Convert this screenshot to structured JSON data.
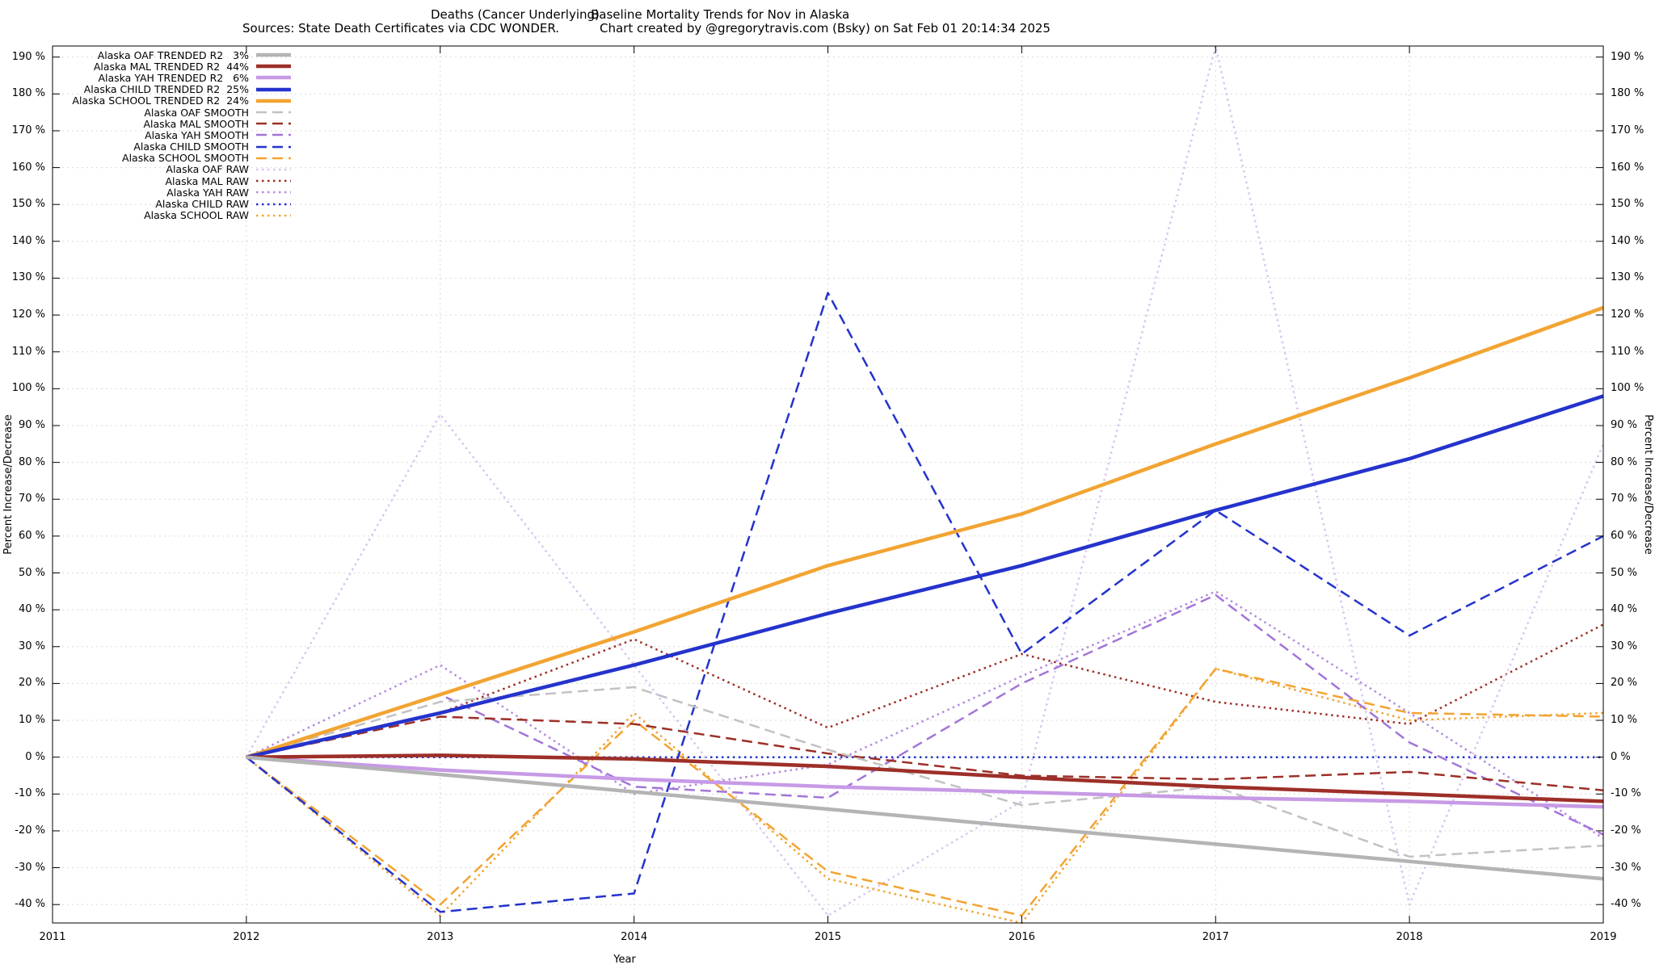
{
  "header": {
    "title_left": "Deaths (Cancer Underlying)",
    "title_right": "Baseline Mortality Trends for Nov in Alaska",
    "subtitle_left": "Sources: State Death Certificates via CDC WONDER.",
    "subtitle_right": "Chart created by @gregorytravis.com (Bsky) on Sat Feb 01 20:14:34 2025"
  },
  "axes": {
    "x_label": "Year",
    "y_left_label": "Percent Increase/Decrease",
    "y_right_label": "Percent Increase/Decrease"
  },
  "colors": {
    "background": "#ffffff",
    "grid": "#d9d9d9",
    "axis": "#000000",
    "gray": "#b4b4b4",
    "dark_red": "#9d2f28",
    "light_purple": "#c79ae6",
    "blue": "#2433cc",
    "orange": "#f2a432",
    "pale_violet": "#d8c4f0"
  },
  "chart_data": {
    "type": "line",
    "title": "Deaths (Cancer Underlying)  Baseline Mortality Trends for Nov in Alaska",
    "xlabel": "Year",
    "ylabel": "Percent Increase/Decrease",
    "grid": true,
    "legend_position": "top-left",
    "x_range": [
      2011,
      2019
    ],
    "y_range": [
      -45,
      193
    ],
    "x_ticks": [
      2011,
      2012,
      2013,
      2014,
      2015,
      2016,
      2017,
      2018,
      2019
    ],
    "y_tick_min": -40,
    "y_tick_max": 190,
    "y_tick_step": 10,
    "y_tick_suffix": " %",
    "x": [
      2012,
      2013,
      2014,
      2015,
      2016,
      2017,
      2018,
      2019
    ],
    "series": [
      {
        "name": "alaska-oaf-trended",
        "legend_label": "Alaska OAF TRENDED R2   3%",
        "style": "solid",
        "width": 4.5,
        "color": "#b4b4b4",
        "values": [
          0,
          -4.7,
          -9.4,
          -14.1,
          -18.9,
          -23.6,
          -28.3,
          -33
        ]
      },
      {
        "name": "alaska-mal-trended",
        "legend_label": "Alaska MAL TRENDED R2  44%",
        "style": "solid",
        "width": 4.5,
        "color": "#9d2f28",
        "values": [
          0,
          0.5,
          -0.5,
          -2.5,
          -5.5,
          -8,
          -10,
          -12
        ]
      },
      {
        "name": "alaska-yah-trended",
        "legend_label": "Alaska YAH TRENDED R2   6%",
        "style": "solid",
        "width": 4.5,
        "color": "#c79ae6",
        "values": [
          0,
          -3.5,
          -6,
          -8,
          -9.5,
          -11,
          -12,
          -13.5
        ]
      },
      {
        "name": "alaska-child-trended",
        "legend_label": "Alaska CHILD TRENDED R2  25%",
        "style": "solid",
        "width": 4.5,
        "color": "#2433cc",
        "values": [
          0,
          12,
          25,
          39,
          52,
          67,
          81,
          98
        ]
      },
      {
        "name": "alaska-school-trended",
        "legend_label": "Alaska SCHOOL TRENDED R2  24%",
        "style": "solid",
        "width": 4.5,
        "color": "#f2a432",
        "values": [
          0,
          17,
          34,
          52,
          66,
          85,
          103,
          122
        ]
      },
      {
        "name": "alaska-oaf-smooth",
        "legend_label": "Alaska OAF SMOOTH",
        "style": "dashed",
        "width": 2.5,
        "color": "#c2c2c2",
        "values": [
          0,
          15,
          19,
          2,
          -13,
          -8,
          -27,
          -24
        ]
      },
      {
        "name": "alaska-mal-smooth",
        "legend_label": "Alaska MAL SMOOTH",
        "style": "dashed",
        "width": 2.5,
        "color": "#9d2f28",
        "values": [
          0,
          11,
          9,
          1,
          -5,
          -6,
          -4,
          -9
        ]
      },
      {
        "name": "alaska-yah-smooth",
        "legend_label": "Alaska YAH SMOOTH",
        "style": "dashed",
        "width": 2.5,
        "color": "#a275d8",
        "values": [
          0,
          17,
          -8,
          -11,
          20,
          44,
          4,
          -21
        ]
      },
      {
        "name": "alaska-child-smooth",
        "legend_label": "Alaska CHILD SMOOTH",
        "style": "dashed",
        "width": 2.5,
        "color": "#2433cc",
        "values": [
          0,
          -42,
          -37,
          126,
          28,
          67,
          33,
          60
        ]
      },
      {
        "name": "alaska-school-smooth",
        "legend_label": "Alaska SCHOOL SMOOTH",
        "style": "dashed",
        "width": 2.5,
        "color": "#f2a432",
        "values": [
          0,
          -40,
          10,
          -31,
          -43,
          24,
          12,
          11
        ]
      },
      {
        "name": "alaska-oaf-raw",
        "legend_label": "Alaska OAF RAW",
        "style": "dotted",
        "width": 2.5,
        "color": "#d8c4f0",
        "values": [
          0,
          93,
          25,
          -43,
          -12,
          193,
          -40,
          85
        ]
      },
      {
        "name": "alaska-mal-raw",
        "legend_label": "Alaska MAL RAW",
        "style": "dotted",
        "width": 2.5,
        "color": "#9d2f28",
        "values": [
          0,
          12,
          32,
          8,
          28,
          15,
          9,
          36
        ]
      },
      {
        "name": "alaska-yah-raw",
        "legend_label": "Alaska YAH RAW",
        "style": "dotted",
        "width": 2.5,
        "color": "#b68ae2",
        "values": [
          0,
          25,
          -10,
          -2,
          22,
          45,
          12,
          -22
        ]
      },
      {
        "name": "alaska-child-raw",
        "legend_label": "Alaska CHILD RAW",
        "style": "dotted",
        "width": 2.5,
        "color": "#2433cc",
        "values": [
          0,
          0,
          0,
          0,
          0,
          0,
          0,
          0
        ]
      },
      {
        "name": "alaska-school-raw",
        "legend_label": "Alaska SCHOOL RAW",
        "style": "dotted",
        "width": 2.5,
        "color": "#f2a432",
        "values": [
          0,
          -43,
          12,
          -33,
          -45,
          24,
          10,
          12
        ]
      }
    ]
  }
}
